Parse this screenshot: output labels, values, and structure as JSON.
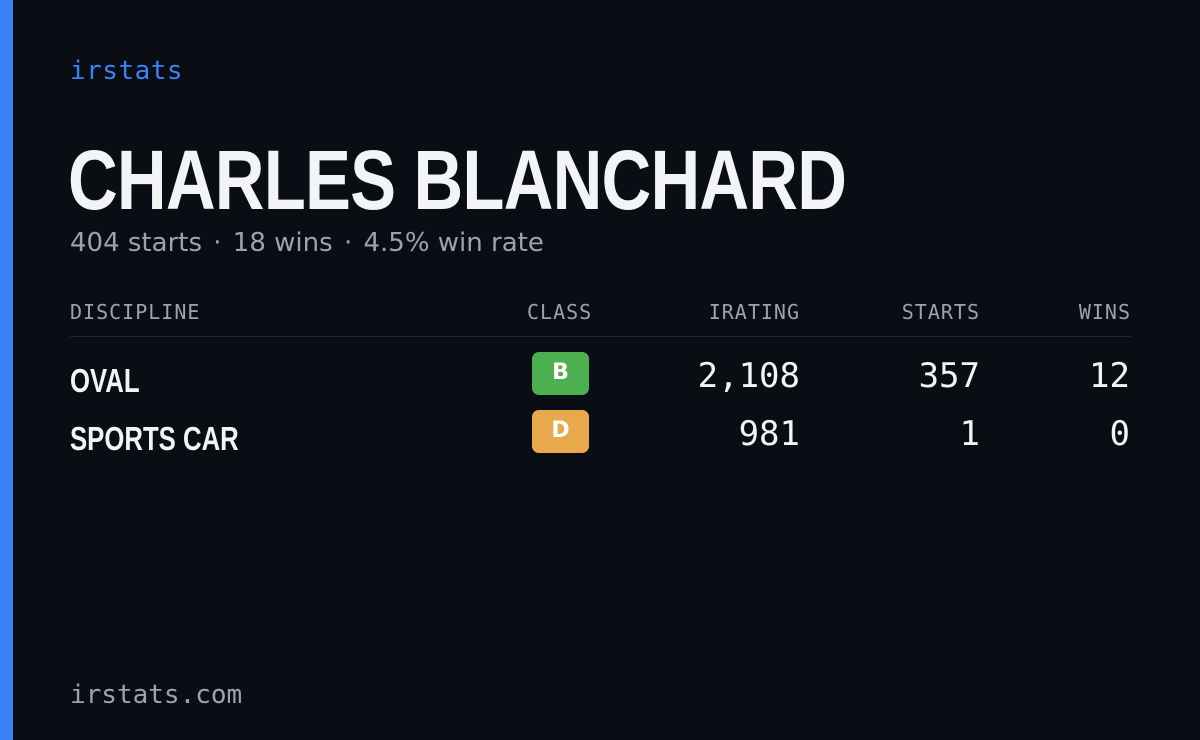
{
  "brand": "irstats",
  "player": {
    "name": "CHARLES BLANCHARD",
    "starts_text": "404 starts",
    "wins_text": "18 wins",
    "win_rate_text": "4.5% win rate",
    "separator": "·"
  },
  "table": {
    "headers": {
      "discipline": "DISCIPLINE",
      "class": "CLASS",
      "irating": "IRATING",
      "starts": "STARTS",
      "wins": "WINS"
    },
    "rows": [
      {
        "discipline": "OVAL",
        "class": "B",
        "class_color": "#4caf50",
        "irating": "2,108",
        "starts": "357",
        "wins": "12"
      },
      {
        "discipline": "SPORTS CAR",
        "class": "D",
        "class_color": "#e8a84c",
        "irating": "981",
        "starts": "1",
        "wins": "0"
      }
    ]
  },
  "footer": {
    "url": "irstats.com"
  },
  "colors": {
    "background": "#0a0d14",
    "accent": "#3b82f6",
    "text_primary": "#f3f4f6",
    "text_muted": "#9ca3af"
  }
}
